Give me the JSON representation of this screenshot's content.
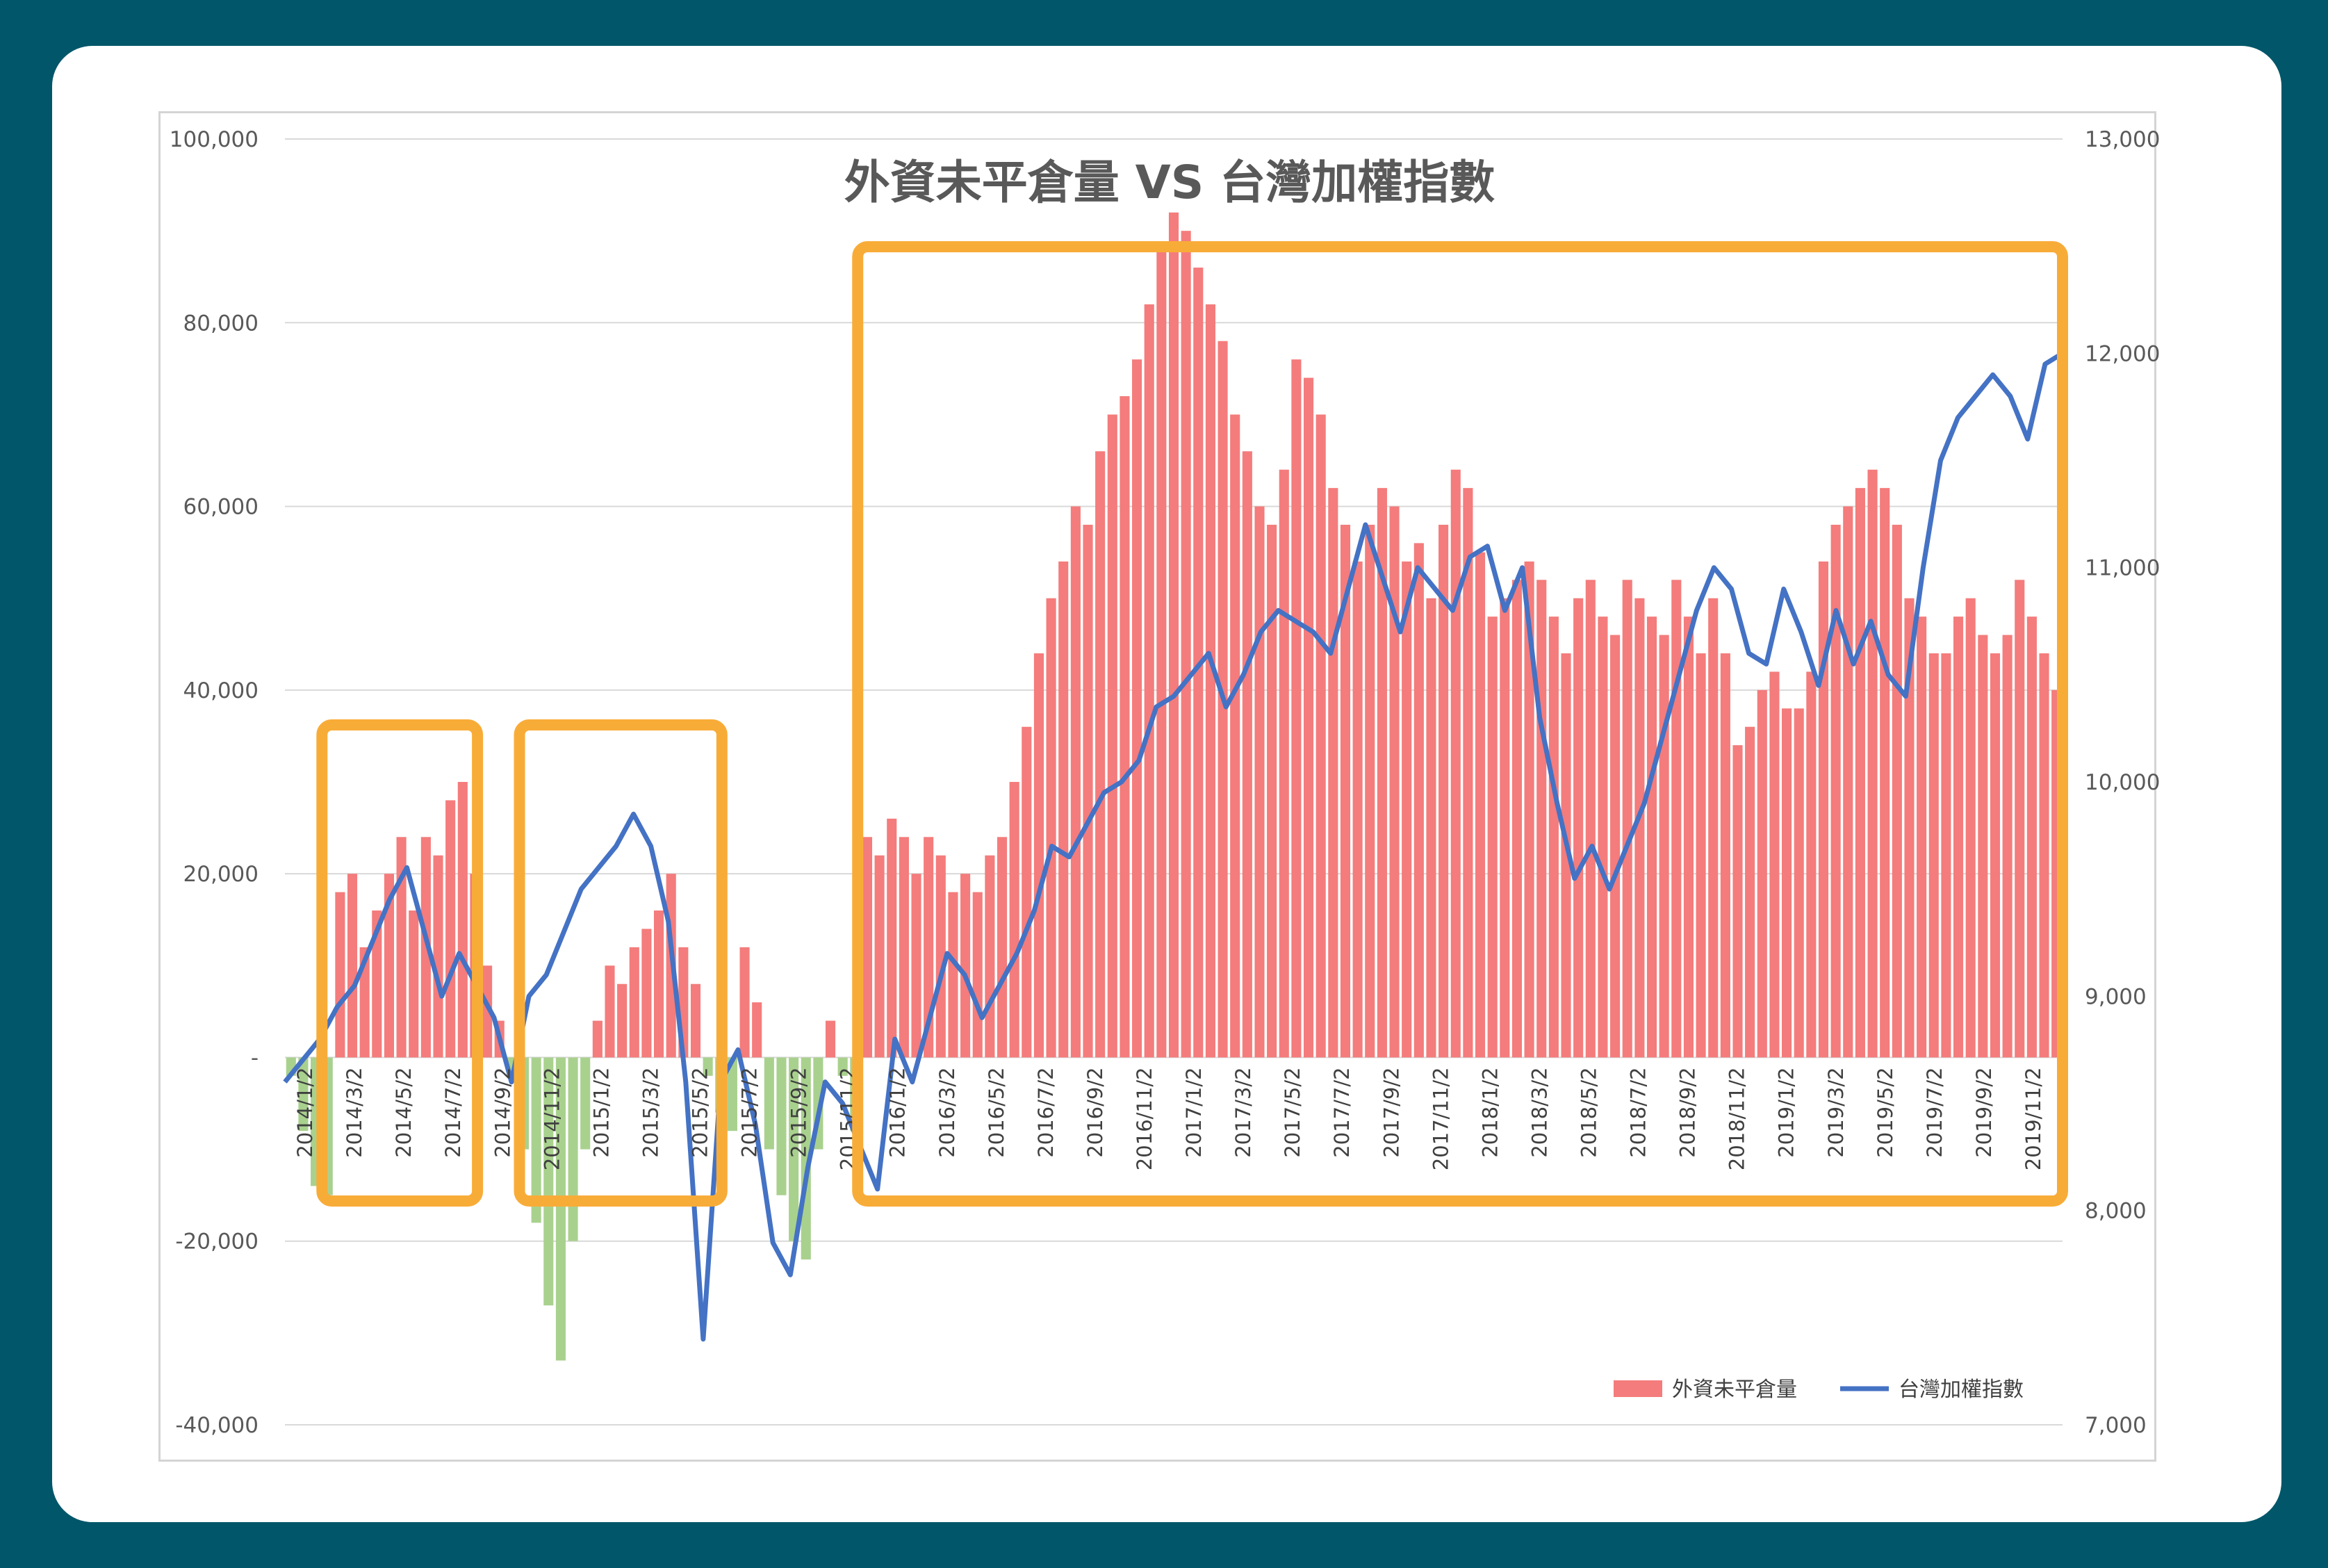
{
  "chart_data": {
    "type": "bar+line",
    "title": "外資未平倉量 VS 台灣加權指數",
    "xlabel": "",
    "ylabel": "",
    "y_left": {
      "ylim": [
        -40000,
        100000
      ],
      "ticks": [
        -40000,
        -20000,
        0,
        20000,
        40000,
        60000,
        80000,
        100000
      ],
      "tick_labels": [
        "-40,000",
        "-20,000",
        "-",
        "20,000",
        "40,000",
        "60,000",
        "80,000",
        "100,000"
      ]
    },
    "y_right": {
      "ylim": [
        7000,
        13000
      ],
      "ticks": [
        7000,
        8000,
        9000,
        10000,
        11000,
        12000,
        13000
      ],
      "tick_labels": [
        "7,000",
        "8,000",
        "9,000",
        "10,000",
        "11,000",
        "12,000",
        "13,000"
      ]
    },
    "x_tick_labels": [
      "2014/1/2",
      "2014/3/2",
      "2014/5/2",
      "2014/7/2",
      "2014/9/2",
      "2014/11/2",
      "2015/1/2",
      "2015/3/2",
      "2015/5/2",
      "2015/7/2",
      "2015/9/2",
      "2015/11/2",
      "2016/1/2",
      "2016/3/2",
      "2016/5/2",
      "2016/7/2",
      "2016/9/2",
      "2016/11/2",
      "2017/1/2",
      "2017/3/2",
      "2017/5/2",
      "2017/7/2",
      "2017/9/2",
      "2017/11/2",
      "2018/1/2",
      "2018/3/2",
      "2018/5/2",
      "2018/7/2",
      "2018/9/2",
      "2018/11/2",
      "2019/1/2",
      "2019/3/2",
      "2019/5/2",
      "2019/7/2",
      "2019/9/2",
      "2019/11/2"
    ],
    "grid": "horizontal",
    "legend_position": "bottom-right",
    "series": [
      {
        "name": "外資未平倉量",
        "axis": "left",
        "render": "bar",
        "color_positive": "#f47c7c",
        "color_negative": "#a9d18e",
        "values": [
          -2000,
          -8000,
          -14000,
          -15000,
          18000,
          20000,
          12000,
          16000,
          20000,
          24000,
          16000,
          24000,
          22000,
          28000,
          30000,
          20000,
          10000,
          4000,
          -2000,
          -10000,
          -18000,
          -27000,
          -33000,
          -20000,
          -10000,
          4000,
          10000,
          8000,
          12000,
          14000,
          16000,
          20000,
          12000,
          8000,
          -2000,
          -6000,
          -8000,
          12000,
          6000,
          -10000,
          -15000,
          -20000,
          -22000,
          -10000,
          4000,
          -2000,
          -8000,
          24000,
          22000,
          26000,
          24000,
          20000,
          24000,
          22000,
          18000,
          20000,
          18000,
          22000,
          24000,
          30000,
          36000,
          44000,
          50000,
          54000,
          60000,
          58000,
          66000,
          70000,
          72000,
          76000,
          82000,
          88000,
          92000,
          90000,
          86000,
          82000,
          78000,
          70000,
          66000,
          60000,
          58000,
          64000,
          76000,
          74000,
          70000,
          62000,
          58000,
          54000,
          58000,
          62000,
          60000,
          54000,
          56000,
          50000,
          58000,
          64000,
          62000,
          55000,
          48000,
          50000,
          52000,
          54000,
          52000,
          48000,
          44000,
          50000,
          52000,
          48000,
          46000,
          52000,
          50000,
          48000,
          46000,
          52000,
          48000,
          44000,
          50000,
          44000,
          34000,
          36000,
          40000,
          42000,
          38000,
          38000,
          42000,
          54000,
          58000,
          60000,
          62000,
          64000,
          62000,
          58000,
          50000,
          48000,
          44000,
          44000,
          48000,
          50000,
          46000,
          44000,
          46000,
          52000,
          48000,
          44000,
          40000
        ]
      },
      {
        "name": "台灣加權指數",
        "axis": "right",
        "render": "line",
        "color": "#4472c4",
        "values": [
          8600,
          8700,
          8800,
          8950,
          9050,
          9250,
          9450,
          9600,
          9300,
          9000,
          9200,
          9050,
          8900,
          8600,
          9000,
          9100,
          9300,
          9500,
          9600,
          9700,
          9850,
          9700,
          9350,
          8600,
          7400,
          8600,
          8750,
          8400,
          7850,
          7700,
          8200,
          8600,
          8500,
          8300,
          8100,
          8800,
          8600,
          8900,
          9200,
          9100,
          8900,
          9050,
          9200,
          9400,
          9700,
          9650,
          9800,
          9950,
          10000,
          10100,
          10350,
          10400,
          10500,
          10600,
          10350,
          10500,
          10700,
          10800,
          10750,
          10700,
          10600,
          10900,
          11200,
          10950,
          10700,
          11000,
          10900,
          10800,
          11050,
          11100,
          10800,
          11000,
          10300,
          9900,
          9550,
          9700,
          9500,
          9700,
          9900,
          10200,
          10500,
          10800,
          11000,
          10900,
          10600,
          10550,
          10900,
          10700,
          10450,
          10800,
          10550,
          10750,
          10500,
          10400,
          11000,
          11500,
          11700,
          11800,
          11900,
          11800,
          11600,
          11950,
          12000
        ]
      }
    ],
    "annotations": [
      {
        "type": "highlight-box",
        "color": "#f8ac38",
        "from": "2014/3/2",
        "to": "2014/8/2"
      },
      {
        "type": "highlight-box",
        "color": "#f8ac38",
        "from": "2014/10/2",
        "to": "2015/6/2"
      },
      {
        "type": "highlight-box",
        "color": "#f8ac38",
        "from": "2015/11/2",
        "to": "2019/12/2"
      }
    ]
  }
}
